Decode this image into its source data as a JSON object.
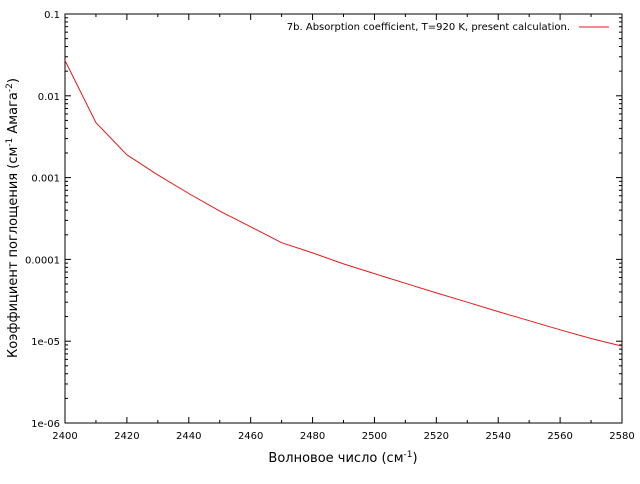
{
  "chart_data": {
    "type": "line",
    "title": "",
    "xlabel": "Волновое число (см",
    "xlabel_sup": "-1",
    "xlabel_tail": ")",
    "ylabel": "Коэффициент поглощения (см",
    "ylabel_sup1": "-1",
    "ylabel_mid": " Амага",
    "ylabel_sup2": "-2",
    "ylabel_tail": ")",
    "xlim": [
      2400,
      2580
    ],
    "ylim": [
      1e-06,
      0.1
    ],
    "yscale": "log",
    "grid": false,
    "legend_position": "top-right",
    "x_ticks": [
      2400,
      2420,
      2440,
      2460,
      2480,
      2500,
      2520,
      2540,
      2560,
      2580
    ],
    "x_tick_labels": [
      "2400",
      "2420",
      "2440",
      "2460",
      "2480",
      "2500",
      "2520",
      "2540",
      "2560",
      "2580"
    ],
    "y_ticks": [
      1e-06,
      1e-05,
      0.0001,
      0.001,
      0.01,
      0.1
    ],
    "y_tick_labels": [
      "1e-06",
      "1e-05",
      "0.0001",
      "0.001",
      "0.01",
      "0.1"
    ],
    "series": [
      {
        "name": "7b. Absorption coefficient, T=920 K, present calculation.",
        "color": "#e41a1c",
        "x": [
          2400,
          2410,
          2420,
          2430,
          2440,
          2450,
          2460,
          2470,
          2480,
          2490,
          2500,
          2510,
          2520,
          2530,
          2540,
          2550,
          2560,
          2570,
          2580
        ],
        "y": [
          0.027,
          0.0047,
          0.0019,
          0.00108,
          0.00064,
          0.00039,
          0.00025,
          0.00016,
          0.00012,
          8.8e-05,
          6.7e-05,
          5.1e-05,
          3.9e-05,
          3e-05,
          2.3e-05,
          1.78e-05,
          1.38e-05,
          1.08e-05,
          8.7e-06
        ]
      }
    ]
  }
}
